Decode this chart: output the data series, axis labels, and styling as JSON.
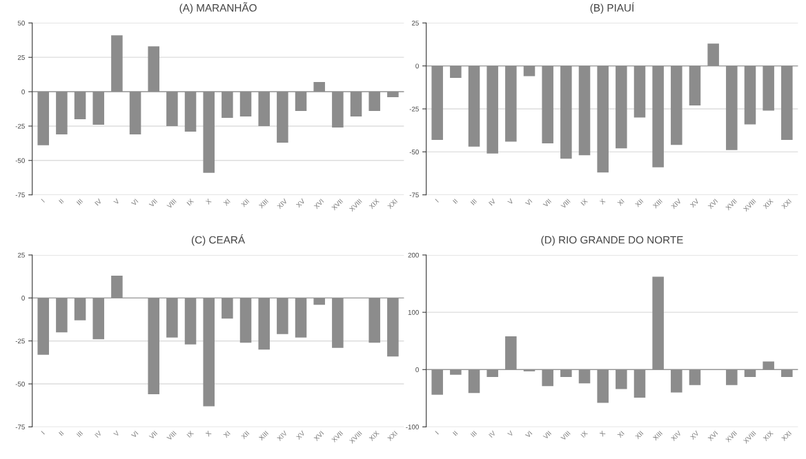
{
  "chart_data": [
    {
      "type": "bar",
      "title": "(A) MARANHÃO",
      "categories": [
        "I",
        "II",
        "III",
        "IV",
        "V",
        "VI",
        "VII",
        "VIII",
        "IX",
        "X",
        "XI",
        "XII",
        "XIII",
        "XIV",
        "XV",
        "XVI",
        "XVII",
        "XVIII",
        "XIX",
        "XXI"
      ],
      "values": [
        -39,
        -31,
        -20,
        -24,
        41,
        -31,
        33,
        -25,
        -29,
        -59,
        -19,
        -18,
        -25,
        -37,
        -14,
        7,
        -26,
        -18,
        -14,
        -4
      ],
      "color": "#8c8c8c",
      "ylim": [
        -75,
        50
      ],
      "yticks": [
        -75,
        -50,
        -25,
        0,
        25,
        50
      ],
      "grid": "y"
    },
    {
      "type": "bar",
      "title": "(B) PIAUÍ",
      "categories": [
        "I",
        "II",
        "III",
        "IV",
        "V",
        "VI",
        "VII",
        "VIII",
        "IX",
        "X",
        "XI",
        "XII",
        "XIII",
        "XIV",
        "XV",
        "XVI",
        "XVII",
        "XVIII",
        "XIX",
        "XXI"
      ],
      "values": [
        -43,
        -7,
        -47,
        -51,
        -44,
        -6,
        -45,
        -54,
        -52,
        -62,
        -48,
        -30,
        -59,
        -46,
        -23,
        13,
        -49,
        -34,
        -26,
        -43
      ],
      "color": "#8c8c8c",
      "ylim": [
        -75,
        25
      ],
      "yticks": [
        -75,
        -50,
        -25,
        0,
        25
      ],
      "grid": "y"
    },
    {
      "type": "bar",
      "title": "(C) CEARÁ",
      "categories": [
        "I",
        "II",
        "III",
        "IV",
        "V",
        "VI",
        "VII",
        "VIII",
        "IX",
        "X",
        "XI",
        "XII",
        "XIII",
        "XIV",
        "XV",
        "XVI",
        "XVII",
        "XVIII",
        "XIX",
        "XXI"
      ],
      "values": [
        -33,
        -20,
        -13,
        -24,
        13,
        0,
        -56,
        -23,
        -27,
        -63,
        -12,
        -26,
        -30,
        -21,
        -23,
        -4,
        -29,
        0,
        -26,
        -34
      ],
      "color": "#8c8c8c",
      "ylim": [
        -75,
        25
      ],
      "yticks": [
        -75,
        -50,
        -25,
        0,
        25
      ],
      "grid": "y"
    },
    {
      "type": "bar",
      "title": "(D) RIO GRANDE DO NORTE",
      "categories": [
        "I",
        "II",
        "III",
        "IV",
        "V",
        "VI",
        "VII",
        "VIII",
        "IX",
        "X",
        "XI",
        "XII",
        "XIII",
        "XIV",
        "XV",
        "XVI",
        "XVII",
        "XVIII",
        "XIX",
        "XXI"
      ],
      "values": [
        -44,
        -9,
        -41,
        -13,
        58,
        -3,
        -29,
        -13,
        -24,
        -58,
        -34,
        -49,
        162,
        -40,
        -27,
        0,
        -27,
        -13,
        14,
        -13
      ],
      "color": "#8c8c8c",
      "ylim": [
        -100,
        200
      ],
      "yticks": [
        -100,
        0,
        100,
        200
      ],
      "grid": "y"
    }
  ]
}
